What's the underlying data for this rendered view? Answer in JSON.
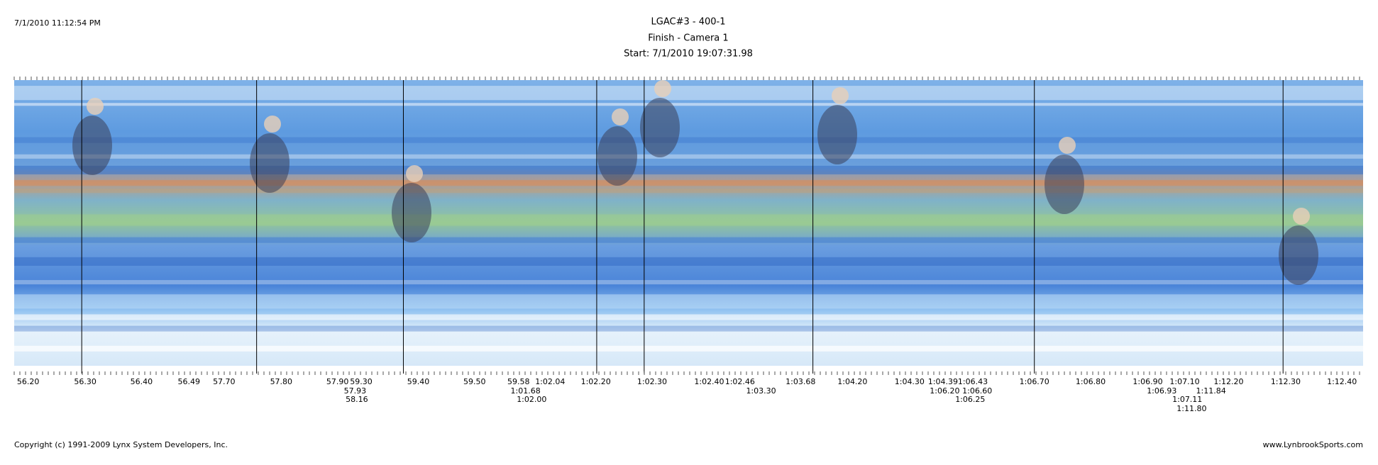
{
  "header": {
    "timestamp": "7/1/2010 11:12:54 PM",
    "title": "LGAC#3 - 400-1",
    "subtitle": "Finish - Camera 1",
    "start": "Start: 7/1/2010 19:07:31.98"
  },
  "time_labels": [
    [
      "56.20",
      "56.30",
      "56.40",
      "56.49",
      "57.70",
      "57.80",
      "57.90",
      "59.30",
      "59.40",
      "59.50",
      "59.58",
      "1:02.04",
      "1:02.20",
      "1:02.30",
      "1:02.40",
      "1:02.46",
      "1:03.68",
      "1:04.20",
      "1:04.30",
      "1:04.39",
      "1:06.43",
      "1:06.70",
      "1:06.80",
      "1:06.90",
      "1:07.10",
      "1:12.20",
      "1:12.30",
      "1:12.40"
    ],
    [
      "57.93",
      "1:01.68",
      "1:03.30",
      "1:06.20",
      "1:06.60",
      "1:06.93",
      "1:11.84"
    ],
    [
      "58.16",
      "1:02.00",
      "1:06.25",
      "1:07.11"
    ],
    [
      "1:11.80"
    ]
  ],
  "footer": {
    "copyright": "Copyright (c) 1991-2009 Lynx System Developers, Inc.",
    "website": "www.LynbrookSports.com"
  }
}
